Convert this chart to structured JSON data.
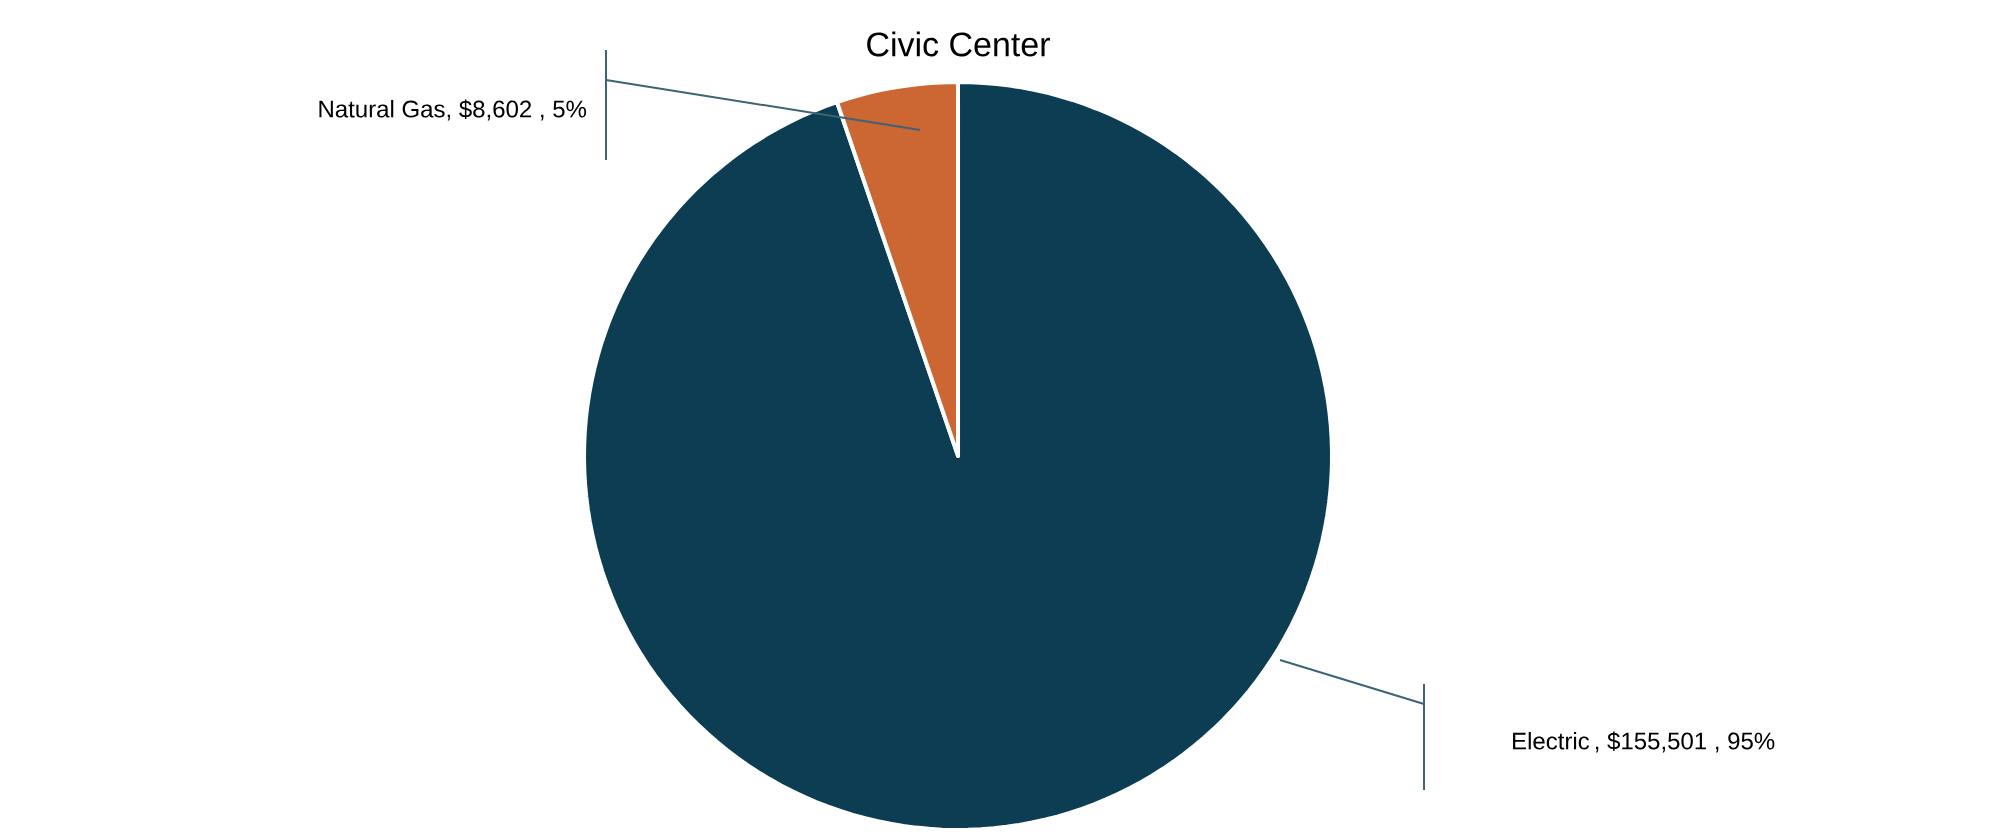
{
  "chart_data": {
    "type": "pie",
    "title": "Civic Center",
    "categories": [
      "Electric",
      "Natural Gas"
    ],
    "values": [
      155501,
      8602
    ],
    "colors": [
      "#0d3d52",
      "#cc6633"
    ],
    "value_labels": [
      ", $155,501 , 95%",
      ", $8,602 , 5%"
    ]
  }
}
